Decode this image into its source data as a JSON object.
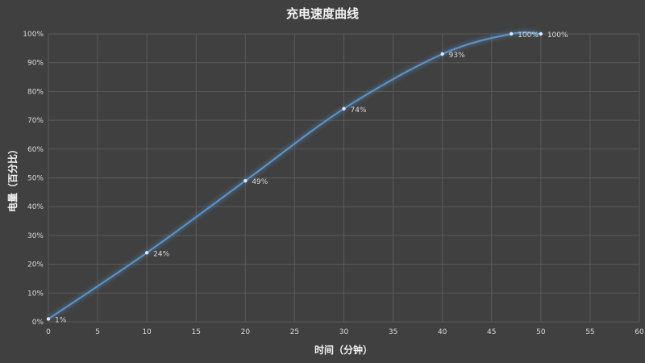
{
  "chart_data": {
    "type": "line",
    "title": "充电速度曲线",
    "xlabel": "时间（分钟）",
    "ylabel": "电量（百分比）",
    "xlim": [
      0,
      60
    ],
    "ylim": [
      0,
      100
    ],
    "x_ticks": [
      "0",
      "5",
      "10",
      "15",
      "20",
      "25",
      "30",
      "35",
      "40",
      "45",
      "50",
      "55",
      "60"
    ],
    "y_ticks": [
      "0%",
      "10%",
      "20%",
      "30%",
      "40%",
      "50%",
      "60%",
      "70%",
      "80%",
      "90%",
      "100%"
    ],
    "grid": true,
    "smooth": true,
    "series": [
      {
        "x": [
          0,
          10,
          20,
          30,
          40,
          47,
          50
        ],
        "values": [
          1,
          24,
          49,
          74,
          93,
          100,
          100
        ],
        "labels": [
          "1%",
          "24%",
          "49%",
          "74%",
          "93%",
          "100%",
          "100%"
        ],
        "color": "#5b9bd5"
      }
    ],
    "colors": {
      "background": "#404040",
      "grid": "#5a5a5a",
      "text": "#d9d9d9",
      "title": "#f2f2f2",
      "line": "#5b9bd5"
    }
  }
}
